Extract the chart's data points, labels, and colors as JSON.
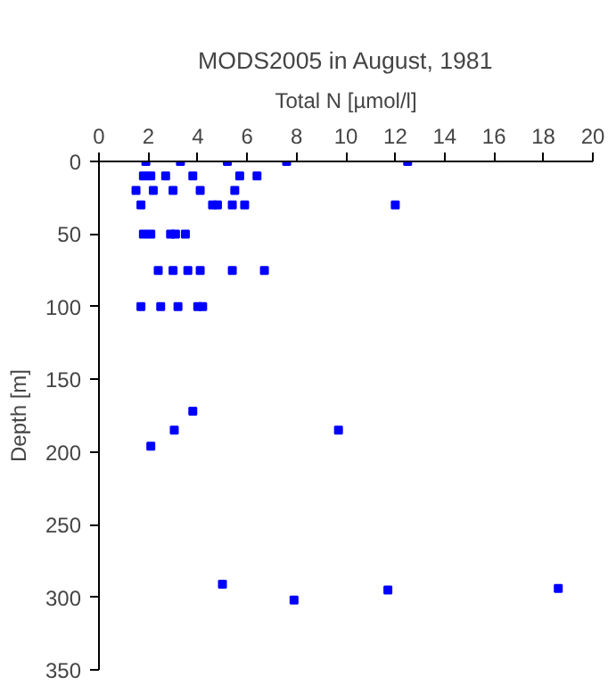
{
  "chart_data": {
    "type": "scatter",
    "title": "MODS2005 in August, 1981",
    "xlabel": "Total N [µmol/l]",
    "ylabel": "Depth [m]",
    "x": [
      1.9,
      3.3,
      5.2,
      7.6,
      12.5,
      1.8,
      2.1,
      2.7,
      3.8,
      5.7,
      6.4,
      1.5,
      2.2,
      3.0,
      4.1,
      5.5,
      1.7,
      4.6,
      4.8,
      5.4,
      5.9,
      12.0,
      1.8,
      2.1,
      2.9,
      3.1,
      3.5,
      2.4,
      3.0,
      3.6,
      4.1,
      5.4,
      6.7,
      1.7,
      2.5,
      3.2,
      4.0,
      4.2,
      3.8,
      3.05,
      9.7,
      2.1,
      5.0,
      7.9,
      11.7,
      18.6
    ],
    "values": [
      0,
      0,
      0,
      0,
      0,
      10,
      10,
      10,
      10,
      10,
      10,
      20,
      20,
      20,
      20,
      20,
      30,
      30,
      30,
      30,
      30,
      30,
      50,
      50,
      50,
      50,
      50,
      75,
      75,
      75,
      75,
      75,
      75,
      100,
      100,
      100,
      100,
      100,
      172,
      185,
      185,
      196,
      291,
      302,
      295,
      294
    ],
    "color": "#0000ff",
    "marker": "square",
    "xlim": [
      0,
      20
    ],
    "ylim": [
      350,
      0
    ],
    "xticks": [
      0,
      2,
      4,
      6,
      8,
      10,
      12,
      14,
      16,
      18,
      20
    ],
    "yticks": [
      0,
      50,
      100,
      150,
      200,
      250,
      300,
      350
    ],
    "grid": false,
    "legend": false
  }
}
